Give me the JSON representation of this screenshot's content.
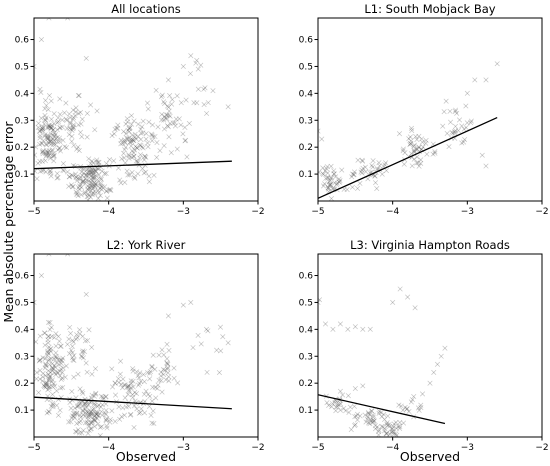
{
  "figure": {
    "ylabel": "Mean absolute percentage error",
    "xlabel": "Observed"
  },
  "chart_data": [
    {
      "type": "scatter",
      "title": "All locations",
      "xlim": [
        -5,
        -2
      ],
      "ylim": [
        0,
        0.68
      ],
      "xticks": [
        -5,
        -4,
        -3,
        -2
      ],
      "yticks": [
        0.1,
        0.2,
        0.3,
        0.4,
        0.5,
        0.6
      ],
      "fit_line": {
        "x": [
          -5,
          -2.35
        ],
        "y": [
          0.12,
          0.148
        ]
      },
      "clusters": [
        {
          "x0": -5.0,
          "x1": -4.6,
          "y0": 0.02,
          "y1": 0.42,
          "n": 120
        },
        {
          "x0": -4.6,
          "x1": -3.9,
          "y0": 0.0,
          "y1": 0.16,
          "n": 140
        },
        {
          "x0": -4.9,
          "x1": -4.1,
          "y0": 0.15,
          "y1": 0.45,
          "n": 60
        },
        {
          "x0": -4.0,
          "x1": -3.3,
          "y0": 0.05,
          "y1": 0.35,
          "n": 110
        },
        {
          "x0": -3.5,
          "x1": -2.9,
          "y0": 0.15,
          "y1": 0.45,
          "n": 50
        },
        {
          "x0": -3.0,
          "x1": -2.5,
          "y0": 0.25,
          "y1": 0.55,
          "n": 14
        }
      ],
      "outliers": [
        [
          -4.8,
          0.68
        ],
        [
          -4.55,
          0.68
        ],
        [
          -4.3,
          0.53
        ],
        [
          -5.0,
          0.5
        ],
        [
          -4.9,
          0.6
        ],
        [
          -3.0,
          0.5
        ],
        [
          -2.9,
          0.54
        ],
        [
          -2.4,
          0.35
        ],
        [
          -2.8,
          0.49
        ],
        [
          -3.2,
          0.45
        ]
      ]
    },
    {
      "type": "scatter",
      "title": "L1: South Mobjack Bay",
      "xlim": [
        -5,
        -2
      ],
      "ylim": [
        0,
        0.68
      ],
      "xticks": [
        -5,
        -4,
        -3,
        -2
      ],
      "yticks": [
        0.1,
        0.2,
        0.3,
        0.4,
        0.5,
        0.6
      ],
      "fit_line": {
        "x": [
          -5,
          -2.6
        ],
        "y": [
          0.01,
          0.31
        ]
      },
      "clusters": [
        {
          "x0": -5.0,
          "x1": -4.6,
          "y0": 0.0,
          "y1": 0.14,
          "n": 45
        },
        {
          "x0": -4.6,
          "x1": -4.0,
          "y0": 0.02,
          "y1": 0.18,
          "n": 40
        },
        {
          "x0": -4.0,
          "x1": -3.4,
          "y0": 0.1,
          "y1": 0.28,
          "n": 50
        },
        {
          "x0": -3.4,
          "x1": -2.9,
          "y0": 0.18,
          "y1": 0.38,
          "n": 30
        }
      ],
      "outliers": [
        [
          -5.0,
          0.26
        ],
        [
          -4.95,
          0.23
        ],
        [
          -2.9,
          0.45
        ],
        [
          -2.75,
          0.45
        ],
        [
          -2.6,
          0.51
        ],
        [
          -2.75,
          0.13
        ],
        [
          -2.8,
          0.17
        ],
        [
          -3.0,
          0.4
        ]
      ]
    },
    {
      "type": "scatter",
      "title": "L2: York River",
      "xlim": [
        -5,
        -2
      ],
      "ylim": [
        0,
        0.68
      ],
      "xticks": [
        -5,
        -4,
        -3,
        -2
      ],
      "yticks": [
        0.1,
        0.2,
        0.3,
        0.4,
        0.5,
        0.6
      ],
      "fit_line": {
        "x": [
          -5,
          -2.35
        ],
        "y": [
          0.148,
          0.105
        ]
      },
      "clusters": [
        {
          "x0": -5.0,
          "x1": -4.6,
          "y0": 0.05,
          "y1": 0.45,
          "n": 110
        },
        {
          "x0": -4.6,
          "x1": -3.9,
          "y0": 0.0,
          "y1": 0.18,
          "n": 130
        },
        {
          "x0": -4.9,
          "x1": -4.1,
          "y0": 0.15,
          "y1": 0.45,
          "n": 55
        },
        {
          "x0": -4.0,
          "x1": -3.3,
          "y0": 0.03,
          "y1": 0.3,
          "n": 80
        },
        {
          "x0": -3.5,
          "x1": -3.0,
          "y0": 0.1,
          "y1": 0.4,
          "n": 35
        },
        {
          "x0": -3.0,
          "x1": -2.4,
          "y0": 0.2,
          "y1": 0.5,
          "n": 10
        }
      ],
      "outliers": [
        [
          -4.8,
          0.68
        ],
        [
          -4.55,
          0.68
        ],
        [
          -4.3,
          0.53
        ],
        [
          -5.0,
          0.5
        ],
        [
          -4.9,
          0.6
        ],
        [
          -3.0,
          0.49
        ],
        [
          -2.9,
          0.5
        ],
        [
          -2.4,
          0.35
        ],
        [
          -2.5,
          0.32
        ],
        [
          -3.2,
          0.45
        ]
      ]
    },
    {
      "type": "scatter",
      "title": "L3: Virginia Hampton Roads",
      "xlim": [
        -5,
        -2
      ],
      "ylim": [
        0,
        0.68
      ],
      "xticks": [
        -5,
        -4,
        -3,
        -2
      ],
      "yticks": [
        0.1,
        0.2,
        0.3,
        0.4,
        0.5,
        0.6
      ],
      "fit_line": {
        "x": [
          -5,
          -3.3
        ],
        "y": [
          0.157,
          0.05
        ]
      },
      "clusters": [
        {
          "x0": -5.0,
          "x1": -4.5,
          "y0": 0.08,
          "y1": 0.16,
          "n": 25
        },
        {
          "x0": -4.6,
          "x1": -4.0,
          "y0": 0.0,
          "y1": 0.12,
          "n": 40
        },
        {
          "x0": -4.2,
          "x1": -3.8,
          "y0": 0.0,
          "y1": 0.06,
          "n": 30
        },
        {
          "x0": -4.0,
          "x1": -3.6,
          "y0": 0.05,
          "y1": 0.18,
          "n": 15
        }
      ],
      "outliers": [
        [
          -5.0,
          0.5
        ],
        [
          -4.98,
          0.51
        ],
        [
          -4.9,
          0.42
        ],
        [
          -4.8,
          0.4
        ],
        [
          -4.7,
          0.42
        ],
        [
          -4.6,
          0.4
        ],
        [
          -4.5,
          0.41
        ],
        [
          -4.4,
          0.4
        ],
        [
          -4.3,
          0.4
        ],
        [
          -4.0,
          0.5
        ],
        [
          -3.9,
          0.55
        ],
        [
          -3.8,
          0.52
        ],
        [
          -3.7,
          0.48
        ],
        [
          -3.5,
          0.2
        ],
        [
          -3.4,
          0.27
        ],
        [
          -3.35,
          0.3
        ],
        [
          -3.3,
          0.33
        ],
        [
          -3.45,
          0.24
        ],
        [
          -3.6,
          0.16
        ],
        [
          -4.7,
          0.17
        ],
        [
          -4.5,
          0.18
        ],
        [
          -4.4,
          0.19
        ]
      ]
    }
  ]
}
